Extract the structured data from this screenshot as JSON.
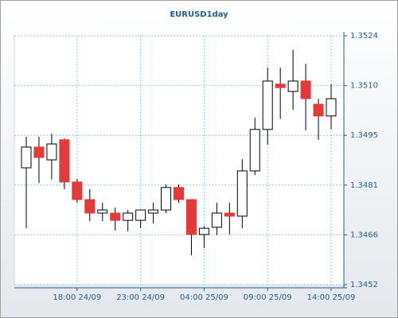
{
  "chart_data": {
    "type": "candlestick",
    "title": "EURUSD1day",
    "categories": [
      null,
      null,
      null,
      null,
      "18:00 24/09",
      null,
      null,
      null,
      null,
      "23:00 24/09",
      null,
      null,
      null,
      null,
      "04:00 25/09",
      null,
      null,
      null,
      null,
      "09:00 25/09",
      null,
      null,
      null,
      null,
      "14:00 25/09"
    ],
    "open": [
      1.34858,
      1.34918,
      1.34881,
      1.34939,
      1.34817,
      1.34766,
      1.34727,
      1.34727,
      1.34706,
      1.34706,
      1.34727,
      1.34736,
      1.34801,
      1.34766,
      1.34665,
      1.34686,
      1.34727,
      1.34718,
      1.34849,
      1.34969,
      1.351,
      1.35079,
      1.35109,
      1.35042,
      1.35008
    ],
    "high": [
      1.34948,
      1.34948,
      1.34957,
      1.34943,
      1.34826,
      1.34796,
      1.34757,
      1.34743,
      1.34736,
      1.34736,
      1.34757,
      1.3481,
      1.3481,
      1.34766,
      1.3469,
      1.34757,
      1.34757,
      1.34883,
      1.35003,
      1.35148,
      1.35148,
      1.35199,
      1.35159,
      1.35058,
      1.351
    ],
    "low": [
      1.34683,
      1.34814,
      1.34824,
      1.34796,
      1.34757,
      1.34704,
      1.34704,
      1.34676,
      1.34674,
      1.34683,
      1.34697,
      1.34727,
      1.34757,
      1.34605,
      1.34626,
      1.34663,
      1.34665,
      1.34683,
      1.34837,
      1.34925,
      1.34999,
      1.35026,
      1.34966,
      1.34939,
      1.34969
    ],
    "close": [
      1.34918,
      1.34888,
      1.34927,
      1.34817,
      1.34766,
      1.34727,
      1.34736,
      1.34706,
      1.34727,
      1.34736,
      1.34736,
      1.34801,
      1.34766,
      1.34665,
      1.34683,
      1.34727,
      1.34718,
      1.34849,
      1.34969,
      1.35109,
      1.3509,
      1.35109,
      1.35058,
      1.35008,
      1.35058
    ],
    "up_color": "#ffffff",
    "down_color": "#e23b3b",
    "ylim": [
      1.3452,
      1.3524
    ],
    "yticks": [
      {
        "value": 1.3452,
        "label": "1.3452"
      },
      {
        "value": 1.34664,
        "label": "1.3466"
      },
      {
        "value": 1.34808,
        "label": "1.3481"
      },
      {
        "value": 1.34952,
        "label": "1.3495"
      },
      {
        "value": 1.35096,
        "label": "1.3510"
      },
      {
        "value": 1.3524,
        "label": "1.3524"
      }
    ],
    "grid": true
  }
}
